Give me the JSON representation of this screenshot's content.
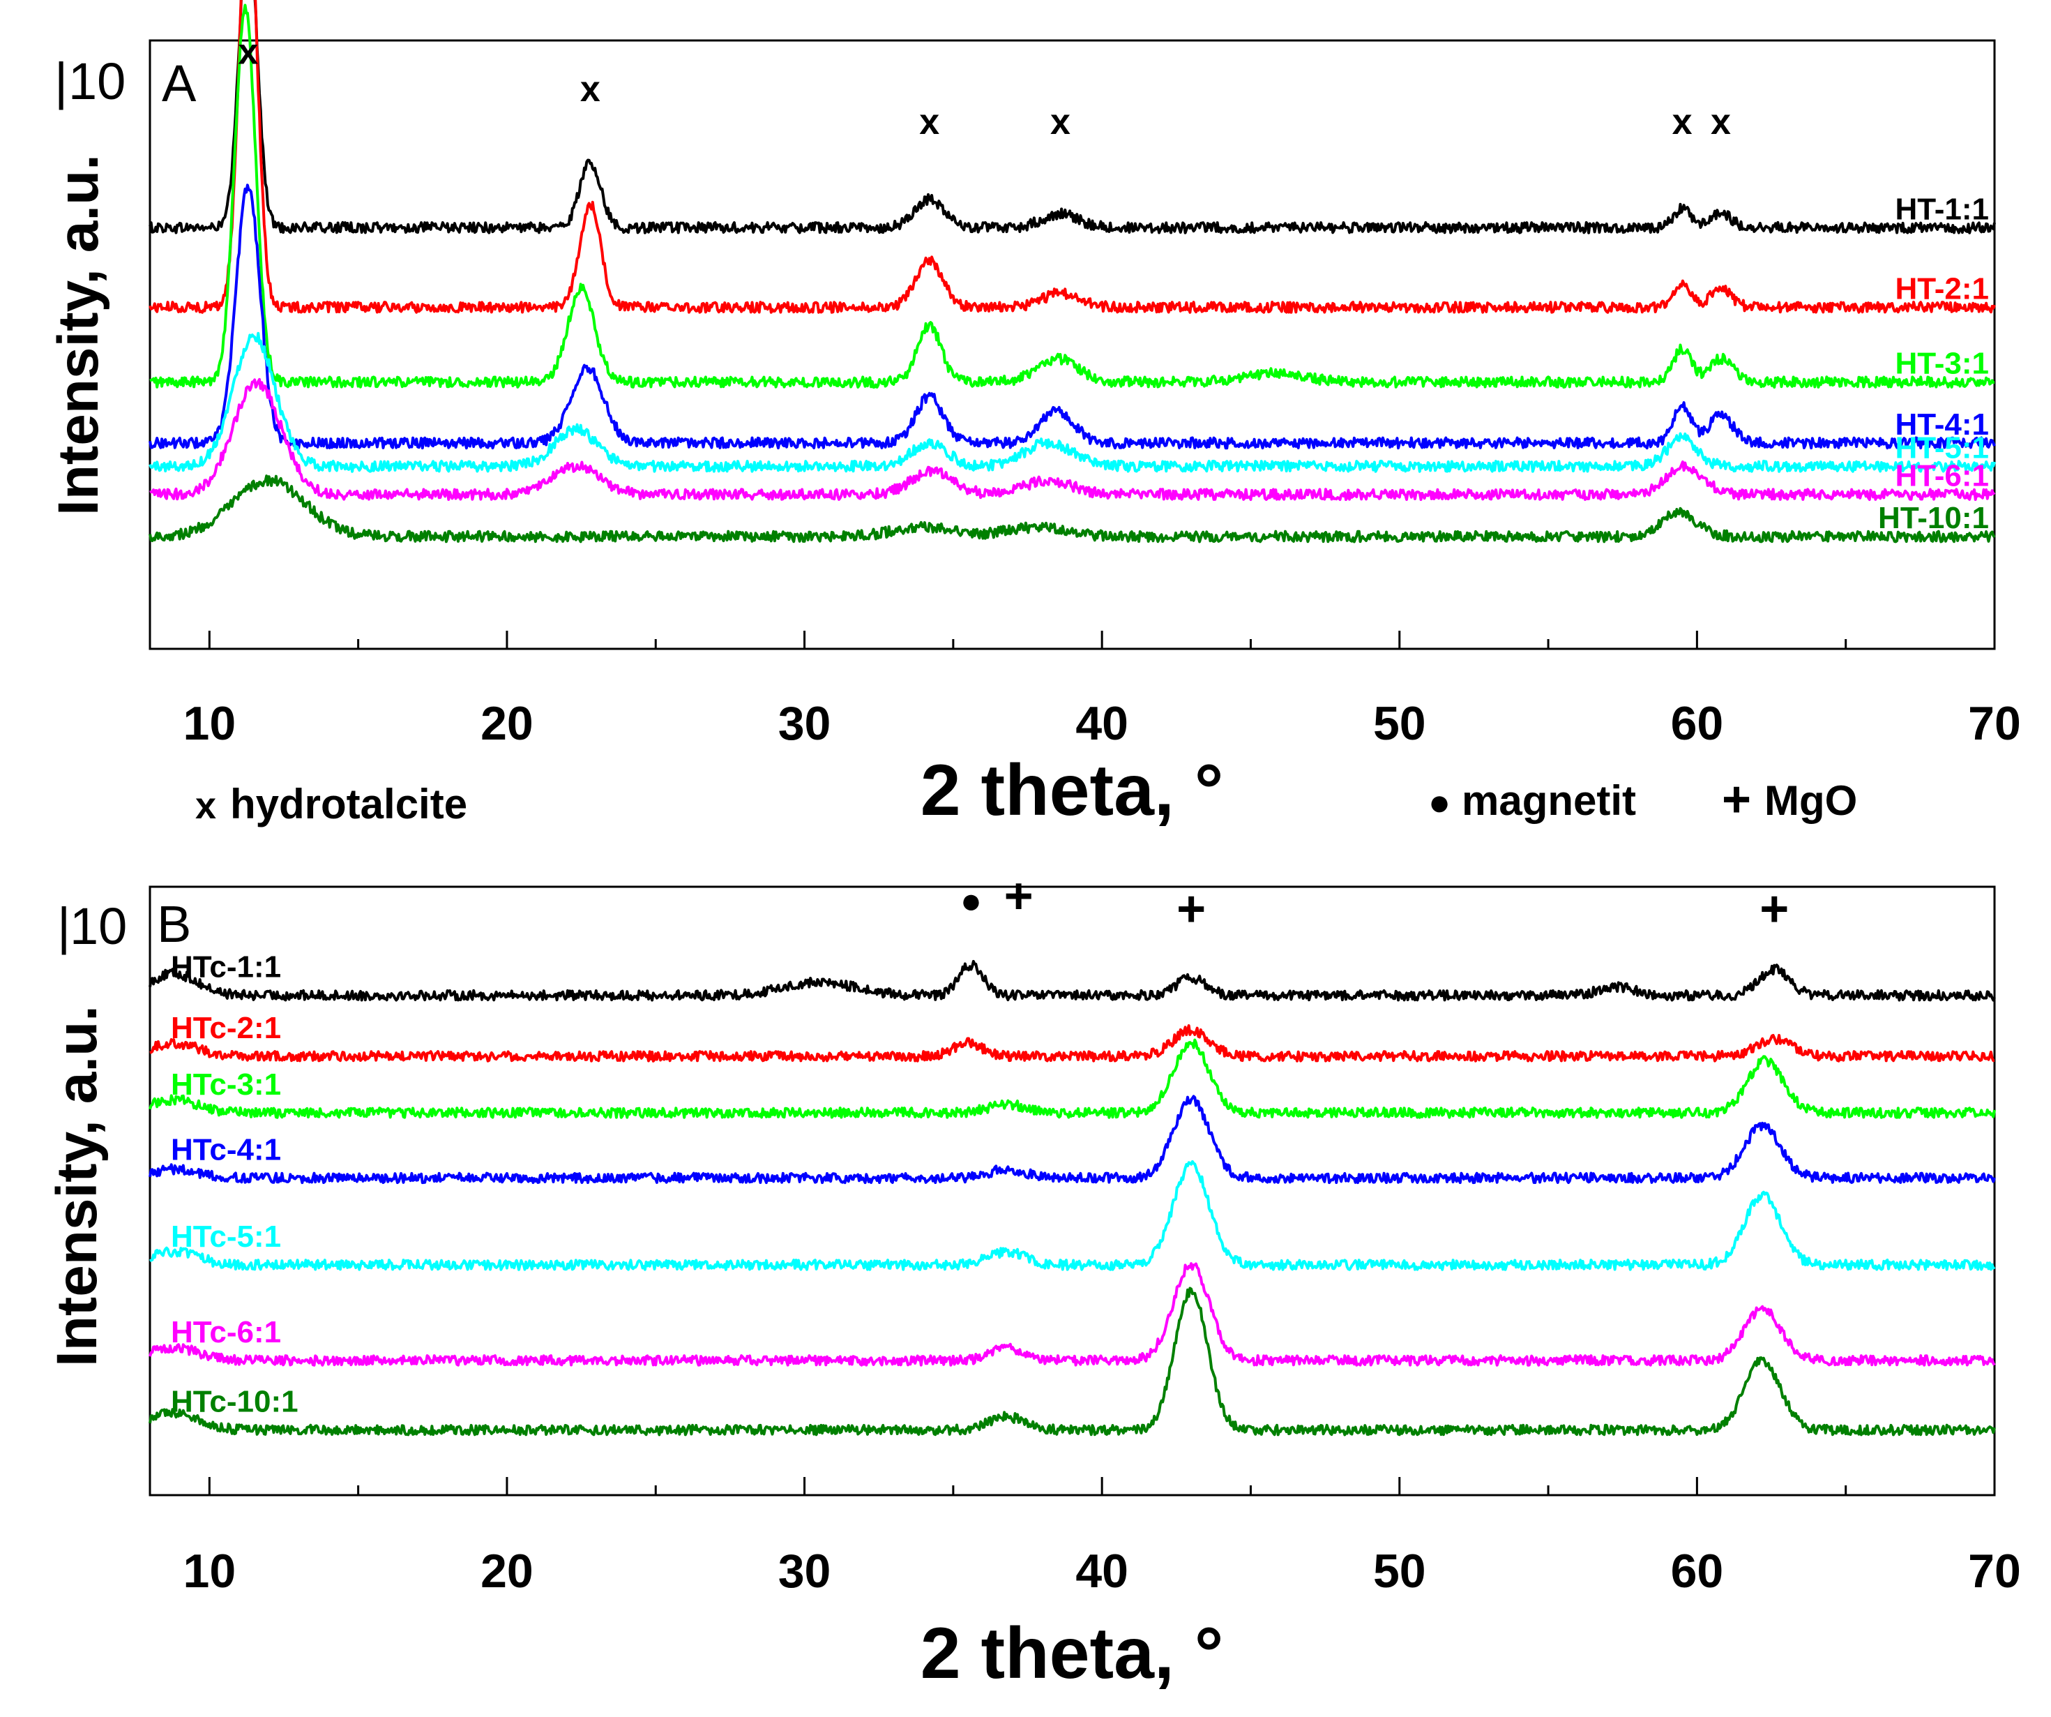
{
  "chart_data": [
    {
      "type": "line",
      "panel": "A",
      "panel_label": "A",
      "scale_bar_label": "10",
      "xlabel": "2 theta, °",
      "ylabel": "Intensity, a.u.",
      "xlim": [
        8,
        70
      ],
      "x_ticks": [
        10,
        20,
        30,
        40,
        50,
        60,
        70
      ],
      "grid": false,
      "y_units": "arbitrary (stacked offset)",
      "series": [
        {
          "name": "HT-1:1",
          "color": "#000000",
          "baseline": 9.0,
          "peaks": [
            [
              11.3,
              6.5,
              0.3
            ],
            [
              22.8,
              1.4,
              0.35
            ],
            [
              34.2,
              0.6,
              0.5
            ],
            [
              38.6,
              0.3,
              0.6
            ],
            [
              59.5,
              0.4,
              0.3
            ],
            [
              60.8,
              0.3,
              0.35
            ]
          ]
        },
        {
          "name": "HT-2:1",
          "color": "#ff0000",
          "baseline": 7.3,
          "peaks": [
            [
              11.3,
              9.0,
              0.3
            ],
            [
              22.8,
              2.2,
              0.35
            ],
            [
              34.2,
              1.0,
              0.45
            ],
            [
              38.6,
              0.3,
              0.6
            ],
            [
              59.5,
              0.5,
              0.3
            ],
            [
              60.8,
              0.4,
              0.35
            ]
          ]
        },
        {
          "name": "HT-3:1",
          "color": "#00ff00",
          "baseline": 5.7,
          "peaks": [
            [
              11.2,
              8.0,
              0.35
            ],
            [
              22.5,
              2.0,
              0.45
            ],
            [
              34.2,
              1.2,
              0.4
            ],
            [
              38.5,
              0.5,
              0.7
            ],
            [
              45.8,
              0.2,
              1.0
            ],
            [
              59.5,
              0.7,
              0.3
            ],
            [
              60.8,
              0.5,
              0.4
            ]
          ]
        },
        {
          "name": "HT-4:1",
          "color": "#0000ff",
          "baseline": 4.4,
          "peaks": [
            [
              11.3,
              5.5,
              0.4
            ],
            [
              22.7,
              1.6,
              0.55
            ],
            [
              34.2,
              1.0,
              0.45
            ],
            [
              38.5,
              0.7,
              0.55
            ],
            [
              59.5,
              0.8,
              0.3
            ],
            [
              60.8,
              0.6,
              0.4
            ]
          ]
        },
        {
          "name": "HT-5:1",
          "color": "#00ffff",
          "baseline": 3.9,
          "peaks": [
            [
              11.5,
              2.8,
              0.7
            ],
            [
              22.3,
              0.8,
              0.7
            ],
            [
              34.2,
              0.5,
              0.6
            ],
            [
              38.2,
              0.5,
              0.8
            ],
            [
              59.5,
              0.6,
              0.5
            ]
          ]
        },
        {
          "name": "HT-6:1",
          "color": "#ff00ff",
          "baseline": 3.3,
          "peaks": [
            [
              11.6,
              2.4,
              0.8
            ],
            [
              22.3,
              0.6,
              0.8
            ],
            [
              34.3,
              0.5,
              0.7
            ],
            [
              38.2,
              0.3,
              0.8
            ],
            [
              59.6,
              0.6,
              0.6
            ]
          ]
        },
        {
          "name": "HT-10:1",
          "color": "#008000",
          "baseline": 2.4,
          "peaks": [
            [
              12.0,
              1.2,
              1.2
            ],
            [
              34.0,
              0.2,
              1.0
            ],
            [
              37.8,
              0.2,
              1.0
            ],
            [
              59.4,
              0.5,
              0.6
            ]
          ]
        }
      ],
      "annotations": [
        {
          "text": "x",
          "x": 11.3,
          "y": 12.5
        },
        {
          "text": "x",
          "x": 22.8,
          "y": 11.7
        },
        {
          "text": "x",
          "x": 34.2,
          "y": 11.0
        },
        {
          "text": "x",
          "x": 38.6,
          "y": 11.0
        },
        {
          "text": "x",
          "x": 59.5,
          "y": 11.0
        },
        {
          "text": "x",
          "x": 60.8,
          "y": 11.0
        }
      ]
    },
    {
      "type": "line",
      "panel": "B",
      "panel_label": "B",
      "scale_bar_label": "10",
      "xlabel": "2 theta, °",
      "ylabel": "Intensity, a.u.",
      "xlim": [
        8,
        70
      ],
      "x_ticks": [
        10,
        20,
        30,
        40,
        50,
        60,
        70
      ],
      "grid": false,
      "y_units": "arbitrary (stacked offset)",
      "series": [
        {
          "name": "HTc-1:1",
          "color": "#000000",
          "baseline": 10.5,
          "peaks": [
            [
              8.8,
              0.5,
              0.8
            ],
            [
              30.5,
              0.3,
              1.2
            ],
            [
              35.6,
              0.7,
              0.4
            ],
            [
              43.0,
              0.4,
              0.5
            ],
            [
              57.3,
              0.2,
              0.6
            ],
            [
              62.6,
              0.6,
              0.5
            ]
          ]
        },
        {
          "name": "HTc-2:1",
          "color": "#ff0000",
          "baseline": 9.1,
          "peaks": [
            [
              8.8,
              0.3,
              0.8
            ],
            [
              35.5,
              0.3,
              0.5
            ],
            [
              43.0,
              0.6,
              0.6
            ],
            [
              62.6,
              0.4,
              0.6
            ]
          ]
        },
        {
          "name": "HTc-3:1",
          "color": "#00ff00",
          "baseline": 7.8,
          "peaks": [
            [
              8.8,
              0.3,
              0.8
            ],
            [
              36.8,
              0.2,
              0.6
            ],
            [
              43.0,
              1.6,
              0.6
            ],
            [
              62.3,
              1.2,
              0.6
            ]
          ]
        },
        {
          "name": "HTc-4:1",
          "color": "#0000ff",
          "baseline": 6.3,
          "peaks": [
            [
              8.8,
              0.2,
              0.8
            ],
            [
              36.8,
              0.2,
              0.6
            ],
            [
              43.0,
              1.8,
              0.6
            ],
            [
              62.2,
              1.2,
              0.6
            ]
          ]
        },
        {
          "name": "HTc-5:1",
          "color": "#00ffff",
          "baseline": 4.3,
          "peaks": [
            [
              8.8,
              0.3,
              0.8
            ],
            [
              36.8,
              0.3,
              0.6
            ],
            [
              43.0,
              2.3,
              0.6
            ],
            [
              62.2,
              1.6,
              0.6
            ]
          ]
        },
        {
          "name": "HTc-6:1",
          "color": "#ff00ff",
          "baseline": 2.1,
          "peaks": [
            [
              8.8,
              0.3,
              0.8
            ],
            [
              36.8,
              0.3,
              0.5
            ],
            [
              43.0,
              2.2,
              0.6
            ],
            [
              62.2,
              1.2,
              0.6
            ]
          ]
        },
        {
          "name": "HTc-10:1",
          "color": "#008000",
          "baseline": 0.5,
          "peaks": [
            [
              8.8,
              0.4,
              0.8
            ],
            [
              36.8,
              0.3,
              0.6
            ],
            [
              43.0,
              3.2,
              0.55
            ],
            [
              62.2,
              1.6,
              0.6
            ]
          ]
        }
      ],
      "annotations": [
        {
          "text": "●",
          "x": 35.6,
          "y": 12.4
        },
        {
          "text": "+",
          "x": 37.2,
          "y": 12.4
        },
        {
          "text": "+",
          "x": 43.0,
          "y": 12.1
        },
        {
          "text": "+",
          "x": 62.6,
          "y": 12.1
        }
      ]
    }
  ],
  "legend": {
    "hydrotalcite": {
      "symbol": "x",
      "label": "hydrotalcite"
    },
    "magnetit": {
      "symbol": "●",
      "label": "magnetit"
    },
    "mgo": {
      "symbol": "+",
      "label": "MgO"
    }
  }
}
